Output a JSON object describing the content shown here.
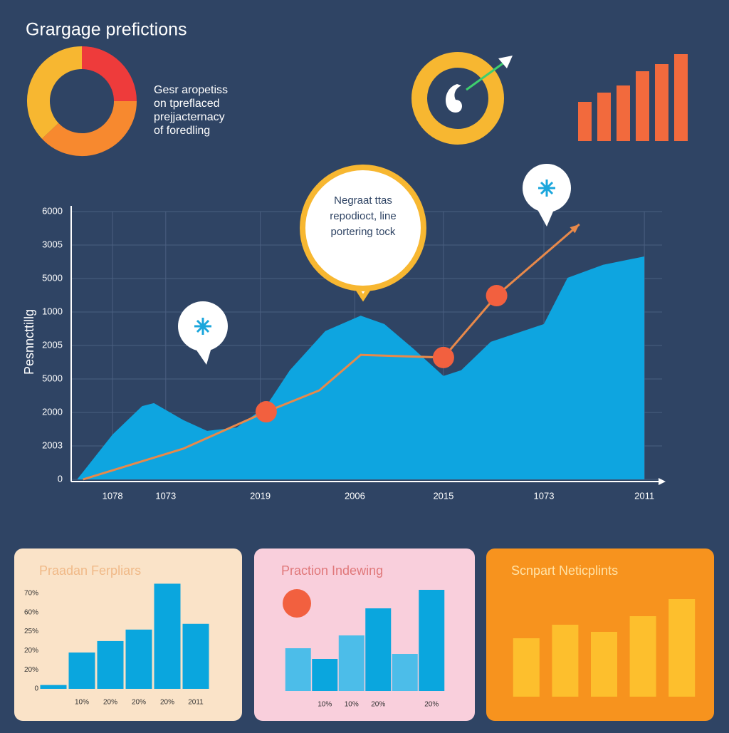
{
  "header": {
    "title": "Grargage prefictions"
  },
  "chart_data": [
    {
      "type": "donut",
      "values": [
        25,
        38,
        37
      ],
      "colors": [
        "#ee3b3b",
        "#f7892f",
        "#f7b731"
      ],
      "annotation": [
        "Gesr aropetiss",
        "on tpreflaced",
        "prejjacternacy",
        "of foredling"
      ]
    },
    {
      "type": "bar",
      "values": [
        55,
        68,
        78,
        98,
        108,
        122
      ],
      "color": "#f26a3d"
    },
    {
      "type": "line",
      "ylabel": "Pesnncttillg",
      "xlim": [
        0,
        100
      ],
      "ylim": [
        0,
        8000
      ],
      "xticks": [
        {
          "value": 7,
          "label": "1078"
        },
        {
          "value": 16,
          "label": "1073"
        },
        {
          "value": 32,
          "label": "2019"
        },
        {
          "value": 48,
          "label": "2006"
        },
        {
          "value": 63,
          "label": "2015"
        },
        {
          "value": 80,
          "label": "1073"
        },
        {
          "value": 97,
          "label": "2011"
        }
      ],
      "yticks": [
        0,
        {
          "value": 1000,
          "label": "2003"
        },
        {
          "value": 2000,
          "label": "2000"
        },
        {
          "value": 3000,
          "label": "5000"
        },
        {
          "value": 4000,
          "label": "2005"
        },
        {
          "value": 5000,
          "label": "1000"
        },
        {
          "value": 6000,
          "label": "5000"
        },
        {
          "value": 7000,
          "label": "3005"
        },
        {
          "value": 8000,
          "label": "6000"
        }
      ],
      "grid": true,
      "annotation": [
        "Negraat ttas",
        "repodioct, line",
        "portering tock"
      ],
      "series": [
        {
          "fill": "area",
          "color": "#0ea5e0",
          "x": [
            1,
            7,
            12,
            14,
            19,
            23,
            28,
            33,
            37,
            43,
            49,
            53,
            58,
            63,
            66,
            71,
            80,
            84,
            90,
            97
          ],
          "values": [
            0,
            1340,
            2190,
            2280,
            1770,
            1450,
            1550,
            2190,
            3260,
            4430,
            4890,
            4640,
            3890,
            3090,
            3260,
            4110,
            4640,
            6020,
            6410,
            6660
          ]
        },
        {
          "fill": "line",
          "color": "#e8894a",
          "x": [
            2,
            19,
            33,
            42,
            49,
            63,
            72,
            86
          ],
          "values": [
            0,
            920,
            2020,
            2660,
            3720,
            3640,
            5490,
            7620
          ]
        }
      ]
    },
    {
      "type": "bar",
      "title": "Praadan Ferpliars",
      "ylim": [
        0,
        60
      ],
      "yticks": [
        0,
        {
          "value": 10,
          "label": "20%"
        },
        {
          "value": 20,
          "label": "20%"
        },
        {
          "value": 30,
          "label": "25%"
        },
        {
          "value": 40,
          "label": "60%"
        },
        {
          "value": 50,
          "label": "70%"
        }
      ],
      "categories": [
        null,
        "10%",
        "20%",
        "20%",
        "20%",
        "2011"
      ],
      "values": [
        2,
        19,
        25,
        31,
        55,
        34
      ],
      "color": "#0aa6de"
    },
    {
      "type": "bar",
      "title": "Praction Indewing",
      "categories": [
        null,
        "10%",
        "10%",
        "20%",
        null,
        "20%"
      ],
      "values": [
        60,
        45,
        78,
        116,
        52,
        142
      ],
      "colors": [
        "#4cbde9",
        "#0aa6de",
        "#4cbde9",
        "#0aa6de",
        "#4cbde9",
        "#0aa6de"
      ]
    },
    {
      "type": "bar",
      "title": "Scnpart Neticplints",
      "values": [
        82,
        101,
        91,
        113,
        137
      ],
      "color": "#fdbf2d"
    }
  ]
}
